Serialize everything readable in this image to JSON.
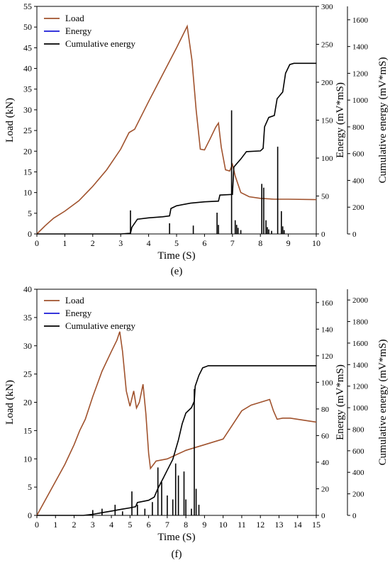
{
  "colors": {
    "load": "#a0522d",
    "energy": "#1a1ad6",
    "cumulative": "#000000",
    "axis": "#000000"
  },
  "chart_data": [
    {
      "id": "e",
      "type": "line",
      "caption": "(e)",
      "xlabel": "Time (S)",
      "ylabel_left": "Load (kN)",
      "ylabel_right1": "Energy (mV*mS)",
      "ylabel_right2": "Cumulative energy (mV*mS)",
      "xlim": [
        0,
        10
      ],
      "ylim_left": [
        0,
        55
      ],
      "ylim_right1": [
        0,
        300
      ],
      "ylim_right2": [
        0,
        1700
      ],
      "xticks": [
        0,
        1,
        2,
        3,
        4,
        5,
        6,
        7,
        8,
        9,
        10
      ],
      "yticks_left": [
        0,
        5,
        10,
        15,
        20,
        25,
        30,
        35,
        40,
        45,
        50,
        55
      ],
      "yticks_right1": [
        0,
        50,
        100,
        150,
        200,
        250,
        300
      ],
      "yticks_right2": [
        0,
        200,
        400,
        600,
        800,
        1000,
        1200,
        1400,
        1600
      ],
      "legend": [
        "Load",
        "Energy",
        "Cumulative energy"
      ],
      "legend_position": "top-left",
      "series": [
        {
          "name": "Load",
          "axis": "left",
          "points": [
            [
              0,
              0
            ],
            [
              0.3,
              2
            ],
            [
              0.6,
              3.8
            ],
            [
              1.0,
              5.5
            ],
            [
              1.5,
              8
            ],
            [
              2.0,
              11.5
            ],
            [
              2.5,
              15.5
            ],
            [
              3.0,
              20.5
            ],
            [
              3.3,
              24.5
            ],
            [
              3.5,
              25.3
            ],
            [
              4.0,
              32
            ],
            [
              4.5,
              38.5
            ],
            [
              5.0,
              45
            ],
            [
              5.38,
              50.2
            ],
            [
              5.55,
              42
            ],
            [
              5.7,
              30
            ],
            [
              5.85,
              20.5
            ],
            [
              6.0,
              20.3
            ],
            [
              6.2,
              23
            ],
            [
              6.4,
              25.8
            ],
            [
              6.5,
              26.8
            ],
            [
              6.6,
              21
            ],
            [
              6.75,
              15.5
            ],
            [
              6.9,
              15.2
            ],
            [
              7.0,
              16.8
            ],
            [
              7.1,
              14
            ],
            [
              7.3,
              10
            ],
            [
              7.6,
              9
            ],
            [
              8.0,
              8.6
            ],
            [
              8.5,
              8.4
            ],
            [
              9.0,
              8.4
            ],
            [
              10,
              8.3
            ]
          ]
        },
        {
          "name": "Cumulative energy",
          "axis": "right2",
          "points": [
            [
              0,
              0
            ],
            [
              1.2,
              0
            ],
            [
              3.0,
              0
            ],
            [
              3.35,
              5
            ],
            [
              3.4,
              50
            ],
            [
              3.6,
              110
            ],
            [
              4.0,
              120
            ],
            [
              4.5,
              128
            ],
            [
              4.75,
              135
            ],
            [
              4.8,
              190
            ],
            [
              5.0,
              210
            ],
            [
              5.5,
              230
            ],
            [
              6.0,
              240
            ],
            [
              6.5,
              245
            ],
            [
              6.55,
              290
            ],
            [
              7.0,
              295
            ],
            [
              7.05,
              500
            ],
            [
              7.3,
              560
            ],
            [
              7.5,
              615
            ],
            [
              8.0,
              620
            ],
            [
              8.1,
              640
            ],
            [
              8.15,
              800
            ],
            [
              8.3,
              870
            ],
            [
              8.5,
              885
            ],
            [
              8.6,
              1010
            ],
            [
              8.8,
              1060
            ],
            [
              8.9,
              1200
            ],
            [
              9.05,
              1265
            ],
            [
              9.2,
              1275
            ],
            [
              10,
              1275
            ]
          ]
        },
        {
          "name": "Energy",
          "axis": "right1",
          "bars": [
            [
              3.35,
              31
            ],
            [
              4.75,
              14
            ],
            [
              5.6,
              11
            ],
            [
              6.45,
              28
            ],
            [
              6.5,
              12
            ],
            [
              6.97,
              163
            ],
            [
              7.1,
              18
            ],
            [
              7.15,
              12
            ],
            [
              7.2,
              8
            ],
            [
              7.3,
              5
            ],
            [
              8.05,
              66
            ],
            [
              8.12,
              61
            ],
            [
              8.2,
              18
            ],
            [
              8.25,
              9
            ],
            [
              8.3,
              6
            ],
            [
              8.4,
              4
            ],
            [
              8.62,
              115
            ],
            [
              8.75,
              30
            ],
            [
              8.8,
              10
            ],
            [
              8.85,
              5
            ]
          ]
        }
      ]
    },
    {
      "id": "f",
      "type": "line",
      "caption": "(f)",
      "xlabel": "Time (S)",
      "ylabel_left": "Load (kN)",
      "ylabel_right1": "Energy (mV*mS)",
      "ylabel_right2": "Cumulative energy (mV*mS)",
      "xlim": [
        0,
        15
      ],
      "ylim_left": [
        0,
        40
      ],
      "ylim_right1": [
        0,
        170
      ],
      "ylim_right2": [
        0,
        2100
      ],
      "xticks": [
        0,
        1,
        2,
        3,
        4,
        5,
        6,
        7,
        8,
        9,
        10,
        11,
        12,
        13,
        14,
        15
      ],
      "yticks_left": [
        0,
        5,
        10,
        15,
        20,
        25,
        30,
        35,
        40
      ],
      "yticks_right1": [
        0,
        20,
        40,
        60,
        80,
        100,
        120,
        140,
        160
      ],
      "yticks_right2": [
        0,
        200,
        400,
        600,
        800,
        1000,
        1200,
        1400,
        1600,
        1800,
        2000
      ],
      "legend": [
        "Load",
        "Energy",
        "Cumulative energy"
      ],
      "legend_position": "top-left",
      "series": [
        {
          "name": "Load",
          "axis": "left",
          "points": [
            [
              0,
              0
            ],
            [
              0.5,
              3
            ],
            [
              1.0,
              6
            ],
            [
              1.5,
              9
            ],
            [
              2.0,
              12.5
            ],
            [
              2.3,
              15
            ],
            [
              2.6,
              17
            ],
            [
              3.0,
              21
            ],
            [
              3.5,
              25.5
            ],
            [
              4.0,
              29
            ],
            [
              4.3,
              31
            ],
            [
              4.45,
              32.5
            ],
            [
              4.6,
              29
            ],
            [
              4.8,
              22
            ],
            [
              5.0,
              19.3
            ],
            [
              5.2,
              22
            ],
            [
              5.35,
              19
            ],
            [
              5.5,
              20
            ],
            [
              5.7,
              23.2
            ],
            [
              5.85,
              18
            ],
            [
              6.0,
              11
            ],
            [
              6.1,
              8.3
            ],
            [
              6.4,
              9.6
            ],
            [
              7.0,
              10
            ],
            [
              8.0,
              11.5
            ],
            [
              9.0,
              12.5
            ],
            [
              10.0,
              13.5
            ],
            [
              10.5,
              16
            ],
            [
              11.0,
              18.5
            ],
            [
              11.5,
              19.5
            ],
            [
              12.0,
              20
            ],
            [
              12.5,
              20.5
            ],
            [
              12.7,
              18.5
            ],
            [
              12.9,
              17
            ],
            [
              13.2,
              17.2
            ],
            [
              13.6,
              17.2
            ],
            [
              14.0,
              17
            ],
            [
              15,
              16.5
            ]
          ]
        },
        {
          "name": "Cumulative energy",
          "axis": "right2",
          "points": [
            [
              0,
              0
            ],
            [
              2.5,
              0
            ],
            [
              3.0,
              10
            ],
            [
              3.5,
              25
            ],
            [
              4.0,
              40
            ],
            [
              4.5,
              55
            ],
            [
              5.0,
              70
            ],
            [
              5.3,
              80
            ],
            [
              5.4,
              120
            ],
            [
              6.0,
              140
            ],
            [
              6.3,
              170
            ],
            [
              6.5,
              250
            ],
            [
              6.8,
              350
            ],
            [
              7.0,
              420
            ],
            [
              7.3,
              520
            ],
            [
              7.6,
              700
            ],
            [
              7.8,
              850
            ],
            [
              8.0,
              950
            ],
            [
              8.3,
              1000
            ],
            [
              8.45,
              1060
            ],
            [
              8.5,
              1200
            ],
            [
              8.7,
              1300
            ],
            [
              8.9,
              1370
            ],
            [
              9.2,
              1390
            ],
            [
              10,
              1390
            ],
            [
              15,
              1390
            ]
          ]
        },
        {
          "name": "Energy",
          "axis": "right1",
          "bars": [
            [
              3.0,
              4
            ],
            [
              3.5,
              5
            ],
            [
              4.2,
              8
            ],
            [
              4.6,
              3
            ],
            [
              5.1,
              18
            ],
            [
              5.4,
              8
            ],
            [
              5.8,
              5
            ],
            [
              6.2,
              10
            ],
            [
              6.5,
              36
            ],
            [
              6.7,
              25
            ],
            [
              7.0,
              15
            ],
            [
              7.3,
              12
            ],
            [
              7.45,
              39
            ],
            [
              7.6,
              30
            ],
            [
              7.9,
              33
            ],
            [
              8.0,
              12
            ],
            [
              8.3,
              5
            ],
            [
              8.45,
              95
            ],
            [
              8.55,
              20
            ],
            [
              8.7,
              8
            ]
          ]
        }
      ]
    }
  ]
}
